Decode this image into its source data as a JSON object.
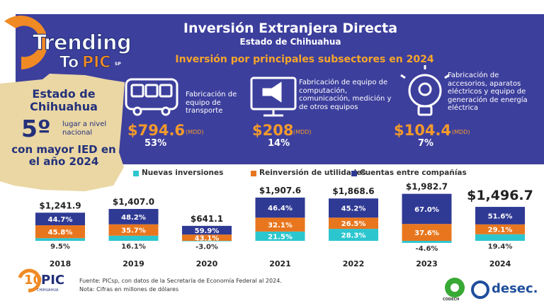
{
  "header": {
    "logo": {
      "line1": "Trending",
      "line2a": "To",
      "line2b": "PIC",
      "line2c": "SP"
    },
    "title": "Inversión Extranjera Directa",
    "subtitle": "Estado de Chihuahua"
  },
  "highlight": {
    "state": "Estado de Chihuahua",
    "rank": "5º",
    "rank_note": "lugar a nivel nacional",
    "caption": "con mayor IED en el año 2024"
  },
  "subsectors": {
    "title": "Inversión por principales subsectores en 2024",
    "items": [
      {
        "name": "Fabricación de equipo de transporte",
        "value": "$794.6",
        "unit": "(MDD)",
        "share": "53%"
      },
      {
        "name": "Fabricación de equipo de computación, comunicación, medición y de otros equipos",
        "value": "$208",
        "unit": "(MDD)",
        "share": "14%"
      },
      {
        "name": "Fabricación de accesorios, aparatos eléctricos y equipo de generación de energía eléctrica",
        "value": "$104.4",
        "unit": "(MDD)",
        "share": "7%"
      }
    ]
  },
  "chart_data": {
    "type": "bar",
    "categories": [
      "2018",
      "2019",
      "2020",
      "2021",
      "2022",
      "2023",
      "2024"
    ],
    "values": [
      1241.9,
      1407.0,
      641.1,
      1907.6,
      1868.6,
      1982.7,
      1496.7
    ],
    "value_labels": [
      "$1,241.9",
      "$1,407.0",
      "$641.1",
      "$1,907.6",
      "$1,868.6",
      "$1,982.7",
      "$1,496.7"
    ],
    "series": [
      {
        "name": "Nuevas inversiones",
        "color": "#2cc6cf",
        "values": [
          9.5,
          16.1,
          -3.0,
          21.5,
          28.3,
          -4.6,
          19.4
        ],
        "value_labels": [
          "9.5%",
          "16.1%",
          "-3.0%",
          "21.5%",
          "28.3%",
          "-4.6%",
          "19.4%"
        ]
      },
      {
        "name": "Reinversión de utilidades",
        "color": "#e8761e",
        "values": [
          45.8,
          35.7,
          43.1,
          32.1,
          26.5,
          37.6,
          29.1
        ],
        "value_labels": [
          "45.8%",
          "35.7%",
          "43.1%",
          "32.1%",
          "26.5%",
          "37.6%",
          "29.1%"
        ]
      },
      {
        "name": "Cuentas entre compañías",
        "color": "#2f3a94",
        "values": [
          44.7,
          48.2,
          59.9,
          46.4,
          45.2,
          67.0,
          51.6
        ],
        "value_labels": [
          "44.7%",
          "48.2%",
          "59.9%",
          "46.4%",
          "45.2%",
          "67.0%",
          "51.6%"
        ]
      }
    ]
  },
  "footer": {
    "source": "Fuente: PICsp, con datos de la Secretaría de Economía Federal al 2024.",
    "note": "Nota: Cifras en millones de dólares",
    "logo_left": {
      "number": "10",
      "name": "PIC",
      "place": "CHIHUAHUA"
    },
    "logo_codech": "CODECH",
    "logo_desec": "desec."
  }
}
